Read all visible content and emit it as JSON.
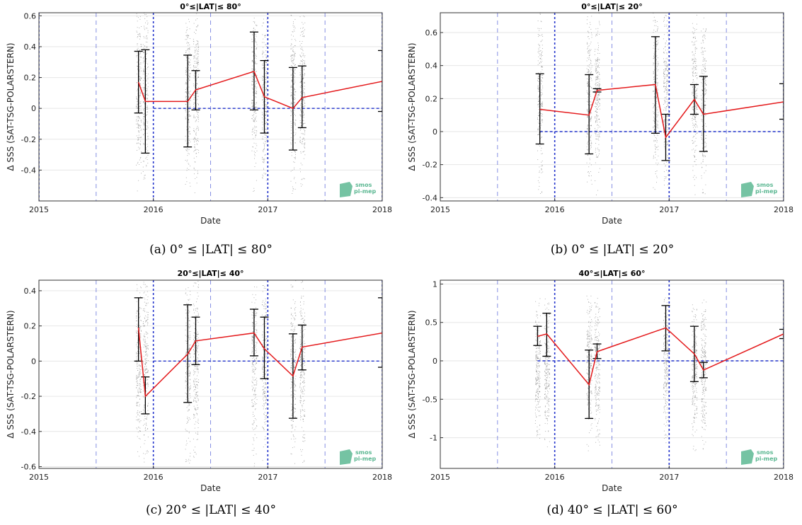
{
  "logo": {
    "line1": "smos",
    "line2": "pi-mep",
    "color": "#5db893"
  },
  "colors": {
    "mean_line": "#e41a1c",
    "error_bar": "#000000",
    "guide": "#2233cc",
    "scatter": "#555555"
  },
  "chart_data": [
    {
      "type": "line",
      "title": "0°≤|LAT|≤ 80°",
      "caption": "(a) 0° ≤ |LAT| ≤ 80°",
      "xlabel": "Date",
      "ylabel": "Δ SSS (SAT-TSG-POLARSTERN)",
      "xlim": [
        2015.0,
        2018.0
      ],
      "ylim": [
        -0.6,
        0.62
      ],
      "xticks": [
        2015,
        2016,
        2017,
        2018
      ],
      "xtick_labels": [
        "2015",
        "2016",
        "2017",
        "2018"
      ],
      "yticks": [
        -0.4,
        -0.2,
        0,
        0.2,
        0.4,
        0.6
      ],
      "ytick_labels": [
        "-0.4",
        "-0.2",
        "0",
        "0.2",
        "0.4",
        "0.6"
      ],
      "mean_line": {
        "x": [
          2015.87,
          2015.93,
          2016.3,
          2016.37,
          2016.88,
          2016.97,
          2017.22,
          2017.3,
          2018.0,
          2018.02
        ],
        "y": [
          0.17,
          0.045,
          0.045,
          0.12,
          0.24,
          0.075,
          0.0,
          0.07,
          0.175,
          0.09
        ]
      },
      "error_bars": [
        {
          "x": 2015.87,
          "low": -0.03,
          "high": 0.37
        },
        {
          "x": 2015.93,
          "low": -0.29,
          "high": 0.38
        },
        {
          "x": 2016.3,
          "low": -0.25,
          "high": 0.345
        },
        {
          "x": 2016.37,
          "low": -0.01,
          "high": 0.245
        },
        {
          "x": 2016.88,
          "low": -0.01,
          "high": 0.495
        },
        {
          "x": 2016.97,
          "low": -0.16,
          "high": 0.31
        },
        {
          "x": 2017.22,
          "low": -0.27,
          "high": 0.265
        },
        {
          "x": 2017.3,
          "low": -0.125,
          "high": 0.275
        },
        {
          "x": 2018.0,
          "low": -0.02,
          "high": 0.375
        }
      ],
      "zero_line_from": 2016.0,
      "scatter_x": [
        2015.87,
        2015.93,
        2016.3,
        2016.37,
        2016.88,
        2016.97,
        2017.22,
        2017.3
      ],
      "scatter_range": [
        -0.55,
        0.62
      ],
      "guides_dense": [
        2015.0,
        2016.0,
        2017.0,
        2018.0
      ],
      "guides_light": [
        2015.5,
        2016.5,
        2017.5
      ]
    },
    {
      "type": "line",
      "title": "0°≤|LAT|≤ 20°",
      "caption": "(b) 0° ≤ |LAT| ≤ 20°",
      "xlabel": "Date",
      "ylabel": "Δ SSS (SAT-TSG-POLARSTERN)",
      "xlim": [
        2015.0,
        2018.0
      ],
      "ylim": [
        -0.42,
        0.72
      ],
      "xticks": [
        2015,
        2016,
        2017,
        2018
      ],
      "xtick_labels": [
        "2015",
        "2016",
        "2017",
        "2018"
      ],
      "yticks": [
        -0.4,
        -0.2,
        0,
        0.2,
        0.4,
        0.6
      ],
      "ytick_labels": [
        "-0.4",
        "-0.2",
        "0",
        "0.2",
        "0.4",
        "0.6"
      ],
      "mean_line": {
        "x": [
          2015.87,
          2016.3,
          2016.37,
          2016.88,
          2016.97,
          2017.22,
          2017.3,
          2018.0,
          2018.02
        ],
        "y": [
          0.135,
          0.1,
          0.25,
          0.285,
          -0.035,
          0.195,
          0.105,
          0.18,
          0.11
        ]
      },
      "error_bars": [
        {
          "x": 2015.87,
          "low": -0.075,
          "high": 0.35
        },
        {
          "x": 2016.3,
          "low": -0.135,
          "high": 0.345
        },
        {
          "x": 2016.37,
          "low": 0.24,
          "high": 0.26
        },
        {
          "x": 2016.88,
          "low": -0.01,
          "high": 0.575
        },
        {
          "x": 2016.97,
          "low": -0.175,
          "high": 0.105
        },
        {
          "x": 2017.22,
          "low": 0.105,
          "high": 0.285
        },
        {
          "x": 2017.3,
          "low": -0.12,
          "high": 0.335
        },
        {
          "x": 2018.0,
          "low": 0.075,
          "high": 0.29
        }
      ],
      "zero_line_from": 2015.87,
      "scatter_x": [
        2015.87,
        2016.3,
        2016.37,
        2016.88,
        2016.97,
        2017.22,
        2017.3
      ],
      "scatter_range": [
        -0.4,
        0.72
      ],
      "guides_dense": [
        2016.0,
        2017.0,
        2018.0
      ],
      "guides_light": [
        2015.0,
        2015.5,
        2016.5,
        2017.5
      ]
    },
    {
      "type": "line",
      "title": "20°≤|LAT|≤ 40°",
      "caption": "(c) 20° ≤ |LAT| ≤ 40°",
      "xlabel": "Date",
      "ylabel": "Δ SSS (SAT-TSG-POLARSTERN)",
      "xlim": [
        2015.0,
        2018.0
      ],
      "ylim": [
        -0.61,
        0.46
      ],
      "xticks": [
        2015,
        2016,
        2017,
        2018
      ],
      "xtick_labels": [
        "2015",
        "2016",
        "2017",
        "2018"
      ],
      "yticks": [
        -0.6,
        -0.4,
        -0.2,
        0,
        0.2,
        0.4
      ],
      "ytick_labels": [
        "-0.6",
        "-0.4",
        "-0.2",
        "0",
        "0.2",
        "0.4"
      ],
      "mean_line": {
        "x": [
          2015.87,
          2015.93,
          2016.3,
          2016.37,
          2016.88,
          2016.97,
          2017.22,
          2017.3,
          2018.0,
          2018.02
        ],
        "y": [
          0.19,
          -0.2,
          0.04,
          0.115,
          0.16,
          0.07,
          -0.085,
          0.08,
          0.16,
          -0.05
        ]
      },
      "error_bars": [
        {
          "x": 2015.87,
          "low": 0.0,
          "high": 0.36
        },
        {
          "x": 2015.93,
          "low": -0.3,
          "high": -0.09
        },
        {
          "x": 2016.3,
          "low": -0.235,
          "high": 0.32
        },
        {
          "x": 2016.37,
          "low": -0.02,
          "high": 0.25
        },
        {
          "x": 2016.88,
          "low": 0.03,
          "high": 0.295
        },
        {
          "x": 2016.97,
          "low": -0.1,
          "high": 0.25
        },
        {
          "x": 2017.22,
          "low": -0.325,
          "high": 0.155
        },
        {
          "x": 2017.3,
          "low": -0.05,
          "high": 0.205
        },
        {
          "x": 2018.0,
          "low": -0.035,
          "high": 0.36
        }
      ],
      "zero_line_from": 2016.0,
      "scatter_x": [
        2015.87,
        2015.93,
        2016.3,
        2016.37,
        2016.88,
        2016.97,
        2017.22,
        2017.3
      ],
      "scatter_range": [
        -0.6,
        0.46
      ],
      "guides_dense": [
        2016.0,
        2017.0,
        2018.0
      ],
      "guides_light": [
        2015.0,
        2015.5,
        2016.5,
        2017.5
      ]
    },
    {
      "type": "line",
      "title": "40°≤|LAT|≤ 60°",
      "caption": "(d) 40° ≤ |LAT| ≤ 60°",
      "xlabel": "Date",
      "ylabel": "Δ SSS (SAT-TSG-POLARSTERN)",
      "xlim": [
        2015.0,
        2018.0
      ],
      "ylim": [
        -1.4,
        1.05
      ],
      "xticks": [
        2015,
        2016,
        2017,
        2018
      ],
      "xtick_labels": [
        "2015",
        "2016",
        "2017",
        "2018"
      ],
      "yticks": [
        -1,
        -0.5,
        0,
        0.5,
        1
      ],
      "ytick_labels": [
        "-1",
        "-0.5",
        "0",
        "0.5",
        "1"
      ],
      "mean_line": {
        "x": [
          2015.85,
          2015.93,
          2016.3,
          2016.37,
          2016.97,
          2017.22,
          2017.3,
          2018.0,
          2018.02
        ],
        "y": [
          0.32,
          0.35,
          -0.31,
          0.12,
          0.43,
          0.09,
          -0.12,
          0.35,
          -0.1
        ]
      },
      "error_bars": [
        {
          "x": 2015.85,
          "low": 0.2,
          "high": 0.45
        },
        {
          "x": 2015.93,
          "low": 0.06,
          "high": 0.62
        },
        {
          "x": 2016.3,
          "low": -0.75,
          "high": 0.14
        },
        {
          "x": 2016.37,
          "low": 0.03,
          "high": 0.22
        },
        {
          "x": 2016.97,
          "low": 0.13,
          "high": 0.72
        },
        {
          "x": 2017.22,
          "low": -0.27,
          "high": 0.45
        },
        {
          "x": 2017.3,
          "low": -0.22,
          "high": -0.02
        },
        {
          "x": 2018.0,
          "low": 0.29,
          "high": 0.41
        }
      ],
      "zero_line_from": 2015.85,
      "scatter_x": [
        2015.85,
        2015.93,
        2016.3,
        2016.37,
        2016.97,
        2017.22,
        2017.3
      ],
      "scatter_range": [
        -1.2,
        0.85
      ],
      "guides_dense": [
        2016.0,
        2017.0,
        2018.0
      ],
      "guides_light": [
        2015.0,
        2015.5,
        2016.5,
        2017.5
      ]
    }
  ]
}
